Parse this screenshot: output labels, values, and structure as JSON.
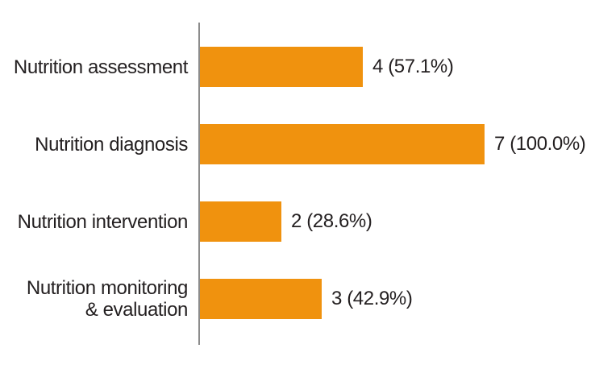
{
  "chart_data": {
    "type": "bar",
    "orientation": "horizontal",
    "title": "",
    "xlabel": "",
    "ylabel": "",
    "categories": [
      "Nutrition assessment",
      "Nutrition diagnosis",
      "Nutrition intervention",
      "Nutrition monitoring\n& evaluation"
    ],
    "values": [
      4,
      7,
      2,
      3
    ],
    "value_labels": [
      "4 (57.1%)",
      "7 (100.0%)",
      "2 (28.6%)",
      "3 (42.9%)"
    ],
    "xlim": [
      0,
      7
    ],
    "grid": false,
    "legend": false,
    "bar_color": "#F0920E",
    "axis_color": "#8C8C8C",
    "text_color": "#231F20",
    "background_color": "#FFFFFF"
  }
}
